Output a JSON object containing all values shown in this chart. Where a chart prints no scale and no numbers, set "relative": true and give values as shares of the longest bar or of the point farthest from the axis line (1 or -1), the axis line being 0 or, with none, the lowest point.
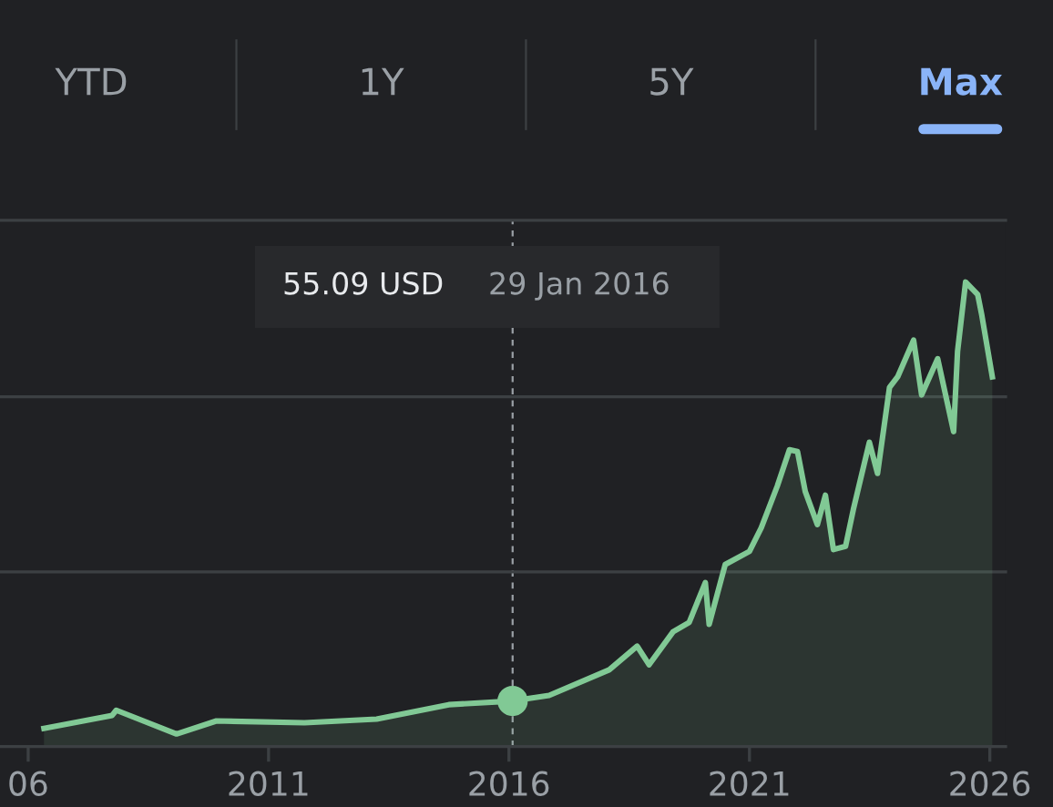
{
  "chart_data": {
    "type": "area",
    "relative": true,
    "x": [
      "2006-05",
      "2007-10",
      "2007-11",
      "2009-02",
      "2009-12",
      "2011-10",
      "2013-04",
      "2014-10",
      "2016-01-29",
      "2016-11",
      "2018-02",
      "2018-09",
      "2018-12",
      "2019-06",
      "2019-10",
      "2020-02",
      "2020-03",
      "2020-07",
      "2021-01",
      "2021-04",
      "2021-08",
      "2021-11",
      "2022-01",
      "2022-03",
      "2022-06",
      "2022-08",
      "2022-10",
      "2023-01",
      "2023-03",
      "2023-07",
      "2023-09",
      "2023-12",
      "2024-02",
      "2024-06",
      "2024-08",
      "2024-12",
      "2025-04",
      "2025-05",
      "2025-07",
      "2025-10",
      "2025-11",
      "2026-01-20"
    ],
    "series": [
      {
        "color": "#81c995",
        "values": [
          0.039,
          0.067,
          0.078,
          0.027,
          0.055,
          0.051,
          0.059,
          0.09,
          0.098,
          0.11,
          0.165,
          0.216,
          0.176,
          0.247,
          0.267,
          0.353,
          0.263,
          0.392,
          0.42,
          0.471,
          0.561,
          0.639,
          0.635,
          0.549,
          0.478,
          0.541,
          0.424,
          0.431,
          0.51,
          0.655,
          0.588,
          0.773,
          0.796,
          0.875,
          0.757,
          0.835,
          0.678,
          0.851,
          1,
          0.973,
          0.929,
          0.796
        ]
      }
    ],
    "xlim": [
      "2005-06",
      "2026-05"
    ],
    "xticks": [
      {
        "value": "2006",
        "label": "06"
      },
      "2011",
      "2016",
      "2021",
      "2026"
    ],
    "ref_lines": [
      {
        "axis": "x",
        "value": "2016-01-29",
        "color": "#9aa0a6",
        "line_style": "dashed"
      },
      {
        "axis": "y",
        "value": 0.376,
        "color": "#3c4043"
      },
      {
        "axis": "y",
        "value": 0.753,
        "color": "#3c4043"
      },
      {
        "axis": "y",
        "value": 1.133,
        "color": "#3c4043"
      }
    ],
    "annotations": [
      "YTD",
      "1Y",
      "5Y",
      "Max",
      "55.09 USD",
      "29 Jan 2016"
    ]
  }
}
